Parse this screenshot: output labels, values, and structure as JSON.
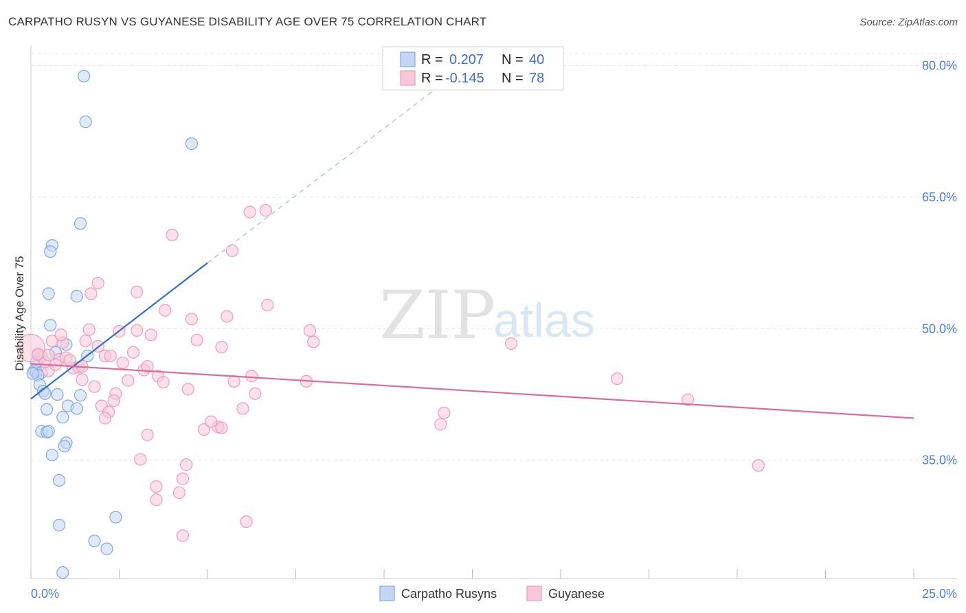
{
  "title": "CARPATHO RUSYN VS GUYANESE DISABILITY AGE OVER 75 CORRELATION CHART",
  "source": "Source: ZipAtlas.com",
  "chart_data": {
    "type": "scatter",
    "title": "CARPATHO RUSYN VS GUYANESE DISABILITY AGE OVER 75 CORRELATION CHART",
    "xlabel": "",
    "ylabel": "Disability Age Over 75",
    "xlim": [
      0,
      25
    ],
    "ylim": [
      21.5,
      82
    ],
    "x_tick_labels": [
      {
        "value": 0,
        "label": "0.0%"
      },
      {
        "value": 25,
        "label": "25.0%"
      }
    ],
    "x_minor_ticks": [
      0,
      2.5,
      5,
      7.5,
      10,
      12.5,
      15,
      17.5,
      20,
      22.5,
      25
    ],
    "y_ticks": [
      {
        "value": 80,
        "label": "80.0%"
      },
      {
        "value": 65,
        "label": "65.0%"
      },
      {
        "value": 50,
        "label": "50.0%"
      },
      {
        "value": 35,
        "label": "35.0%"
      }
    ],
    "grid": true,
    "legend": {
      "position": "top-center",
      "r_label": "R =",
      "n_label": "N =",
      "entries": [
        {
          "series": "Carpatho Rusyns",
          "r": "0.207",
          "n": "40"
        },
        {
          "series": "Guyanese",
          "r": "-0.145",
          "n": "78"
        }
      ]
    },
    "series": [
      {
        "name": "Carpatho Rusyns",
        "color": "#7fa8e6",
        "fill": "#c3d7f4",
        "line_color": "#2f6fd1",
        "trend": {
          "x0": 0.0,
          "y0": 42.0,
          "x1": 5.0,
          "y1": 57.5,
          "dash_to_x": 12.0,
          "dash_to_y": 79.0
        },
        "points": [
          [
            1.5,
            78.8
          ],
          [
            1.55,
            73.6
          ],
          [
            4.55,
            71.1
          ],
          [
            1.4,
            62.0
          ],
          [
            0.6,
            59.5
          ],
          [
            0.55,
            58.8
          ],
          [
            0.5,
            54.0
          ],
          [
            1.3,
            53.7
          ],
          [
            0.55,
            50.4
          ],
          [
            1.0,
            48.2
          ],
          [
            0.2,
            47.0
          ],
          [
            1.6,
            46.9
          ],
          [
            0.1,
            45.2
          ],
          [
            0.3,
            45.0
          ],
          [
            0.15,
            45.1
          ],
          [
            0.2,
            44.7
          ],
          [
            0.25,
            43.6
          ],
          [
            0.35,
            42.9
          ],
          [
            0.4,
            42.6
          ],
          [
            0.75,
            42.5
          ],
          [
            1.4,
            42.4
          ],
          [
            1.05,
            41.2
          ],
          [
            1.3,
            40.9
          ],
          [
            0.45,
            40.8
          ],
          [
            0.9,
            39.9
          ],
          [
            0.3,
            38.3
          ],
          [
            0.45,
            38.2
          ],
          [
            0.5,
            38.3
          ],
          [
            1.0,
            37.0
          ],
          [
            0.95,
            36.6
          ],
          [
            0.6,
            35.6
          ],
          [
            0.8,
            32.7
          ],
          [
            2.4,
            28.5
          ],
          [
            0.8,
            27.6
          ],
          [
            1.8,
            25.8
          ],
          [
            2.15,
            24.9
          ],
          [
            0.9,
            22.2
          ],
          [
            0.05,
            44.9
          ],
          [
            0.15,
            46.2
          ],
          [
            0.7,
            47.3
          ]
        ]
      },
      {
        "name": "Guyanese",
        "color": "#f09ab8",
        "fill": "#f8c8d9",
        "line_color": "#e06a96",
        "trend": {
          "x0": 0.0,
          "y0": 46.0,
          "x1": 25.0,
          "y1": 39.8
        },
        "points": [
          [
            0.0,
            47.8
          ],
          [
            0.3,
            46.8
          ],
          [
            0.5,
            45.2
          ],
          [
            0.8,
            46.5
          ],
          [
            0.9,
            48.4
          ],
          [
            0.6,
            48.6
          ],
          [
            0.85,
            49.3
          ],
          [
            1.0,
            46.7
          ],
          [
            1.2,
            45.5
          ],
          [
            1.35,
            45.6
          ],
          [
            1.45,
            45.7
          ],
          [
            1.45,
            44.2
          ],
          [
            1.55,
            48.6
          ],
          [
            1.65,
            49.9
          ],
          [
            1.7,
            54.0
          ],
          [
            1.9,
            55.2
          ],
          [
            1.9,
            48.0
          ],
          [
            2.1,
            46.9
          ],
          [
            2.25,
            46.9
          ],
          [
            2.5,
            49.7
          ],
          [
            2.6,
            46.1
          ],
          [
            2.75,
            44.1
          ],
          [
            2.9,
            47.3
          ],
          [
            3.0,
            54.2
          ],
          [
            3.0,
            49.8
          ],
          [
            3.2,
            45.3
          ],
          [
            3.3,
            45.7
          ],
          [
            3.4,
            49.3
          ],
          [
            3.6,
            44.6
          ],
          [
            3.75,
            43.9
          ],
          [
            3.8,
            52.1
          ],
          [
            4.0,
            60.7
          ],
          [
            4.45,
            43.1
          ],
          [
            4.55,
            51.1
          ],
          [
            4.7,
            48.7
          ],
          [
            4.9,
            38.5
          ],
          [
            5.3,
            38.8
          ],
          [
            5.4,
            47.9
          ],
          [
            5.55,
            51.4
          ],
          [
            5.7,
            58.9
          ],
          [
            5.75,
            44.0
          ],
          [
            6.2,
            63.3
          ],
          [
            6.25,
            44.6
          ],
          [
            6.35,
            42.6
          ],
          [
            6.65,
            63.5
          ],
          [
            6.7,
            52.7
          ],
          [
            2.0,
            41.2
          ],
          [
            2.2,
            40.5
          ],
          [
            2.4,
            42.6
          ],
          [
            2.1,
            39.8
          ],
          [
            2.35,
            41.8
          ],
          [
            1.8,
            43.4
          ],
          [
            3.3,
            37.9
          ],
          [
            3.1,
            35.1
          ],
          [
            3.55,
            32.0
          ],
          [
            3.55,
            30.5
          ],
          [
            4.2,
            31.3
          ],
          [
            4.3,
            32.9
          ],
          [
            4.4,
            34.5
          ],
          [
            4.3,
            26.4
          ],
          [
            5.1,
            39.4
          ],
          [
            5.4,
            38.7
          ],
          [
            6.0,
            40.9
          ],
          [
            6.1,
            28.0
          ],
          [
            7.8,
            44.0
          ],
          [
            7.9,
            49.8
          ],
          [
            8.0,
            48.5
          ],
          [
            11.6,
            39.1
          ],
          [
            11.7,
            40.4
          ],
          [
            13.6,
            48.3
          ],
          [
            16.6,
            44.3
          ],
          [
            18.6,
            41.9
          ],
          [
            20.6,
            34.4
          ],
          [
            0.4,
            46.2
          ],
          [
            0.7,
            45.9
          ],
          [
            1.1,
            46.4
          ],
          [
            0.2,
            47.1
          ],
          [
            0.5,
            47.0
          ]
        ]
      }
    ]
  }
}
